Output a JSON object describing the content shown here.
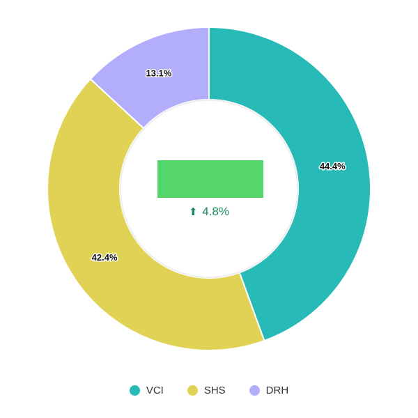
{
  "chart_data": {
    "type": "pie",
    "variant": "donut",
    "categories": [
      "VCI",
      "SHS",
      "DRH"
    ],
    "values": [
      44.4,
      42.4,
      13.1
    ],
    "labels": [
      "44.4%",
      "42.4%",
      "13.1%"
    ],
    "colors": [
      "#27bab6",
      "#e0d255",
      "#b3aefc"
    ],
    "legend_position": "bottom",
    "center": {
      "change_text": "4.8%",
      "change_direction": "up",
      "change_color": "#1a8a5a",
      "redaction_color": "#55d66b"
    }
  }
}
